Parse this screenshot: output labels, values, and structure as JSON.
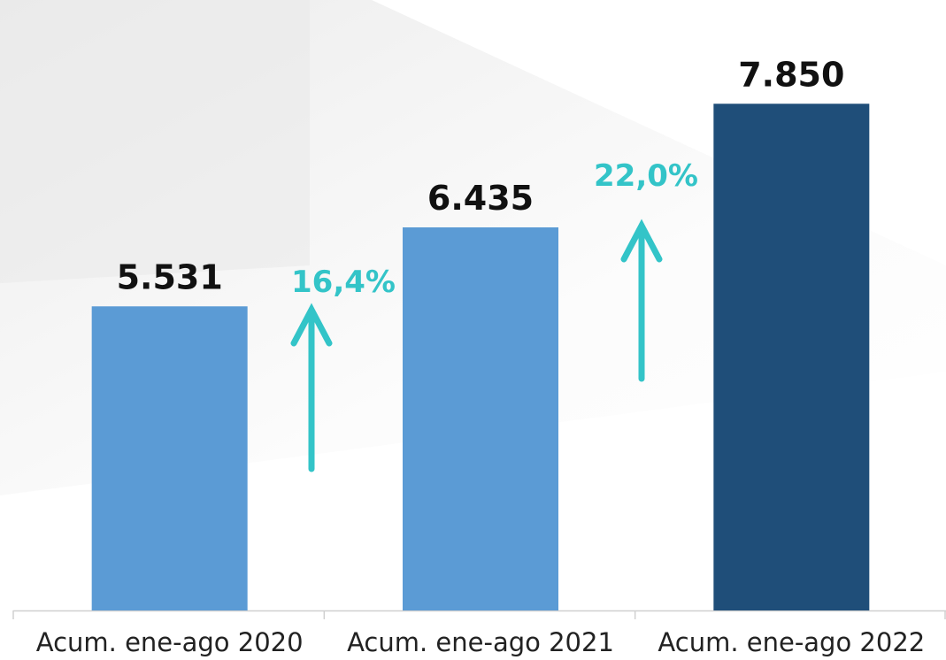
{
  "chart_data": {
    "type": "bar",
    "categories": [
      "Acum. ene-ago 2020",
      "Acum. ene-ago 2021",
      "Acum. ene-ago 2022"
    ],
    "values": [
      5531,
      6435,
      7850
    ],
    "value_labels": [
      "5.531",
      "6.435",
      "7.850"
    ],
    "colors": [
      "#5b9bd5",
      "#5b9bd5",
      "#1f4e79"
    ],
    "ylim": [
      2050,
      8430
    ],
    "annotations": [
      {
        "value": 16.4,
        "label": "16,4%"
      },
      {
        "value": 22.0,
        "label": "22,0%"
      }
    ],
    "annotation_color": "#33c4c8"
  }
}
